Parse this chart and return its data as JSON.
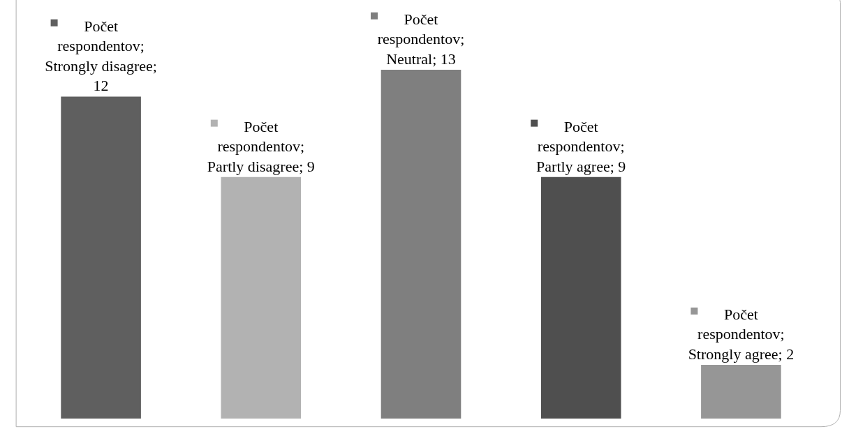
{
  "chart_data": {
    "type": "bar",
    "categories": [
      null,
      null,
      null,
      null,
      null
    ],
    "series": [
      {
        "colors": [
          "#5f5f5f",
          "#b2b2b2",
          "#7f7f7f",
          "#4f4f4f",
          "#969696"
        ],
        "values": [
          12,
          9,
          13,
          9,
          2
        ],
        "value_labels": [
          "Počet respondentov; Strongly disagree; 12",
          "Počet respondentov; Partly disagree; 9",
          "Počet respondentov; Neutral; 13",
          "Počet respondentov; Partly agree; 9",
          "Počet respondentov; Strongly agree; 2"
        ]
      }
    ],
    "tick_labels": false
  }
}
